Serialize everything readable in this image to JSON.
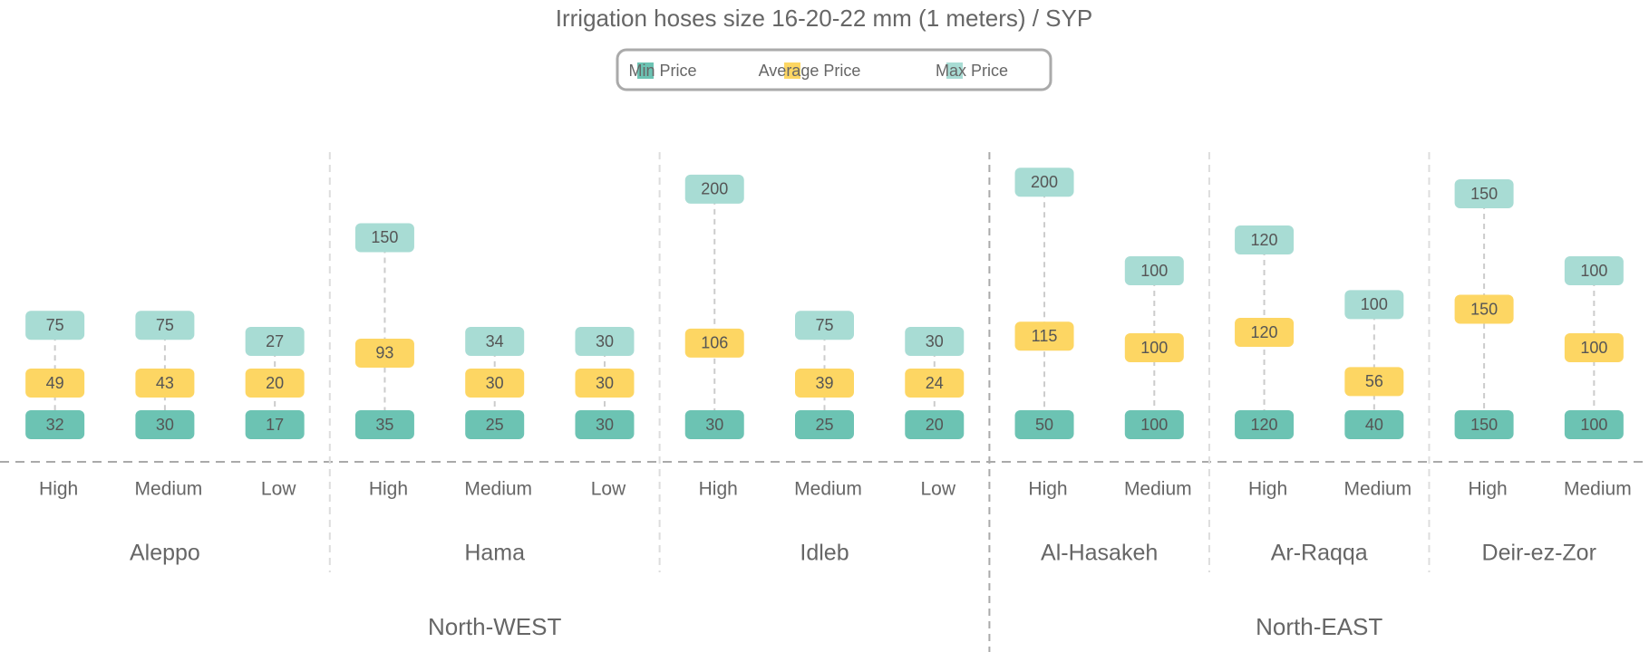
{
  "chart_data": {
    "type": "range",
    "title": "Irrigation hoses size 16-20-22 mm (1 meters) / SYP",
    "series": [
      {
        "name": "Min Price",
        "color": "#6cc3b3"
      },
      {
        "name": "Average Price",
        "color": "#fdd663"
      },
      {
        "name": "Max Price",
        "color": "#a8dcd4"
      }
    ],
    "regions": [
      {
        "name": "North-WEST",
        "provinces": [
          {
            "name": "Aleppo",
            "categories": [
              "High",
              "Medium",
              "Low"
            ],
            "series": [
              [
                32,
                30,
                17
              ],
              [
                49,
                43,
                20
              ],
              [
                75,
                75,
                27
              ]
            ]
          },
          {
            "name": "Hama",
            "categories": [
              "High",
              "Medium",
              "Low"
            ],
            "series": [
              [
                35,
                25,
                30
              ],
              [
                93,
                30,
                30
              ],
              [
                150,
                34,
                30
              ]
            ]
          },
          {
            "name": "Idleb",
            "categories": [
              "High",
              "Medium",
              "Low"
            ],
            "series": [
              [
                30,
                25,
                20
              ],
              [
                106,
                39,
                24
              ],
              [
                200,
                75,
                30
              ]
            ]
          }
        ]
      },
      {
        "name": "North-EAST",
        "provinces": [
          {
            "name": "Al-Hasakeh",
            "categories": [
              "High",
              "Medium"
            ],
            "series": [
              [
                50,
                100
              ],
              [
                115,
                100
              ],
              [
                200,
                100
              ]
            ]
          },
          {
            "name": "Ar-Raqqa",
            "categories": [
              "High",
              "Medium"
            ],
            "series": [
              [
                120,
                40
              ],
              [
                120,
                56
              ],
              [
                120,
                100
              ]
            ]
          },
          {
            "name": "Deir-ez-Zor",
            "categories": [
              "High",
              "Medium"
            ],
            "series": [
              [
                150,
                100
              ],
              [
                150,
                100
              ],
              [
                150,
                100
              ]
            ]
          }
        ]
      }
    ]
  }
}
